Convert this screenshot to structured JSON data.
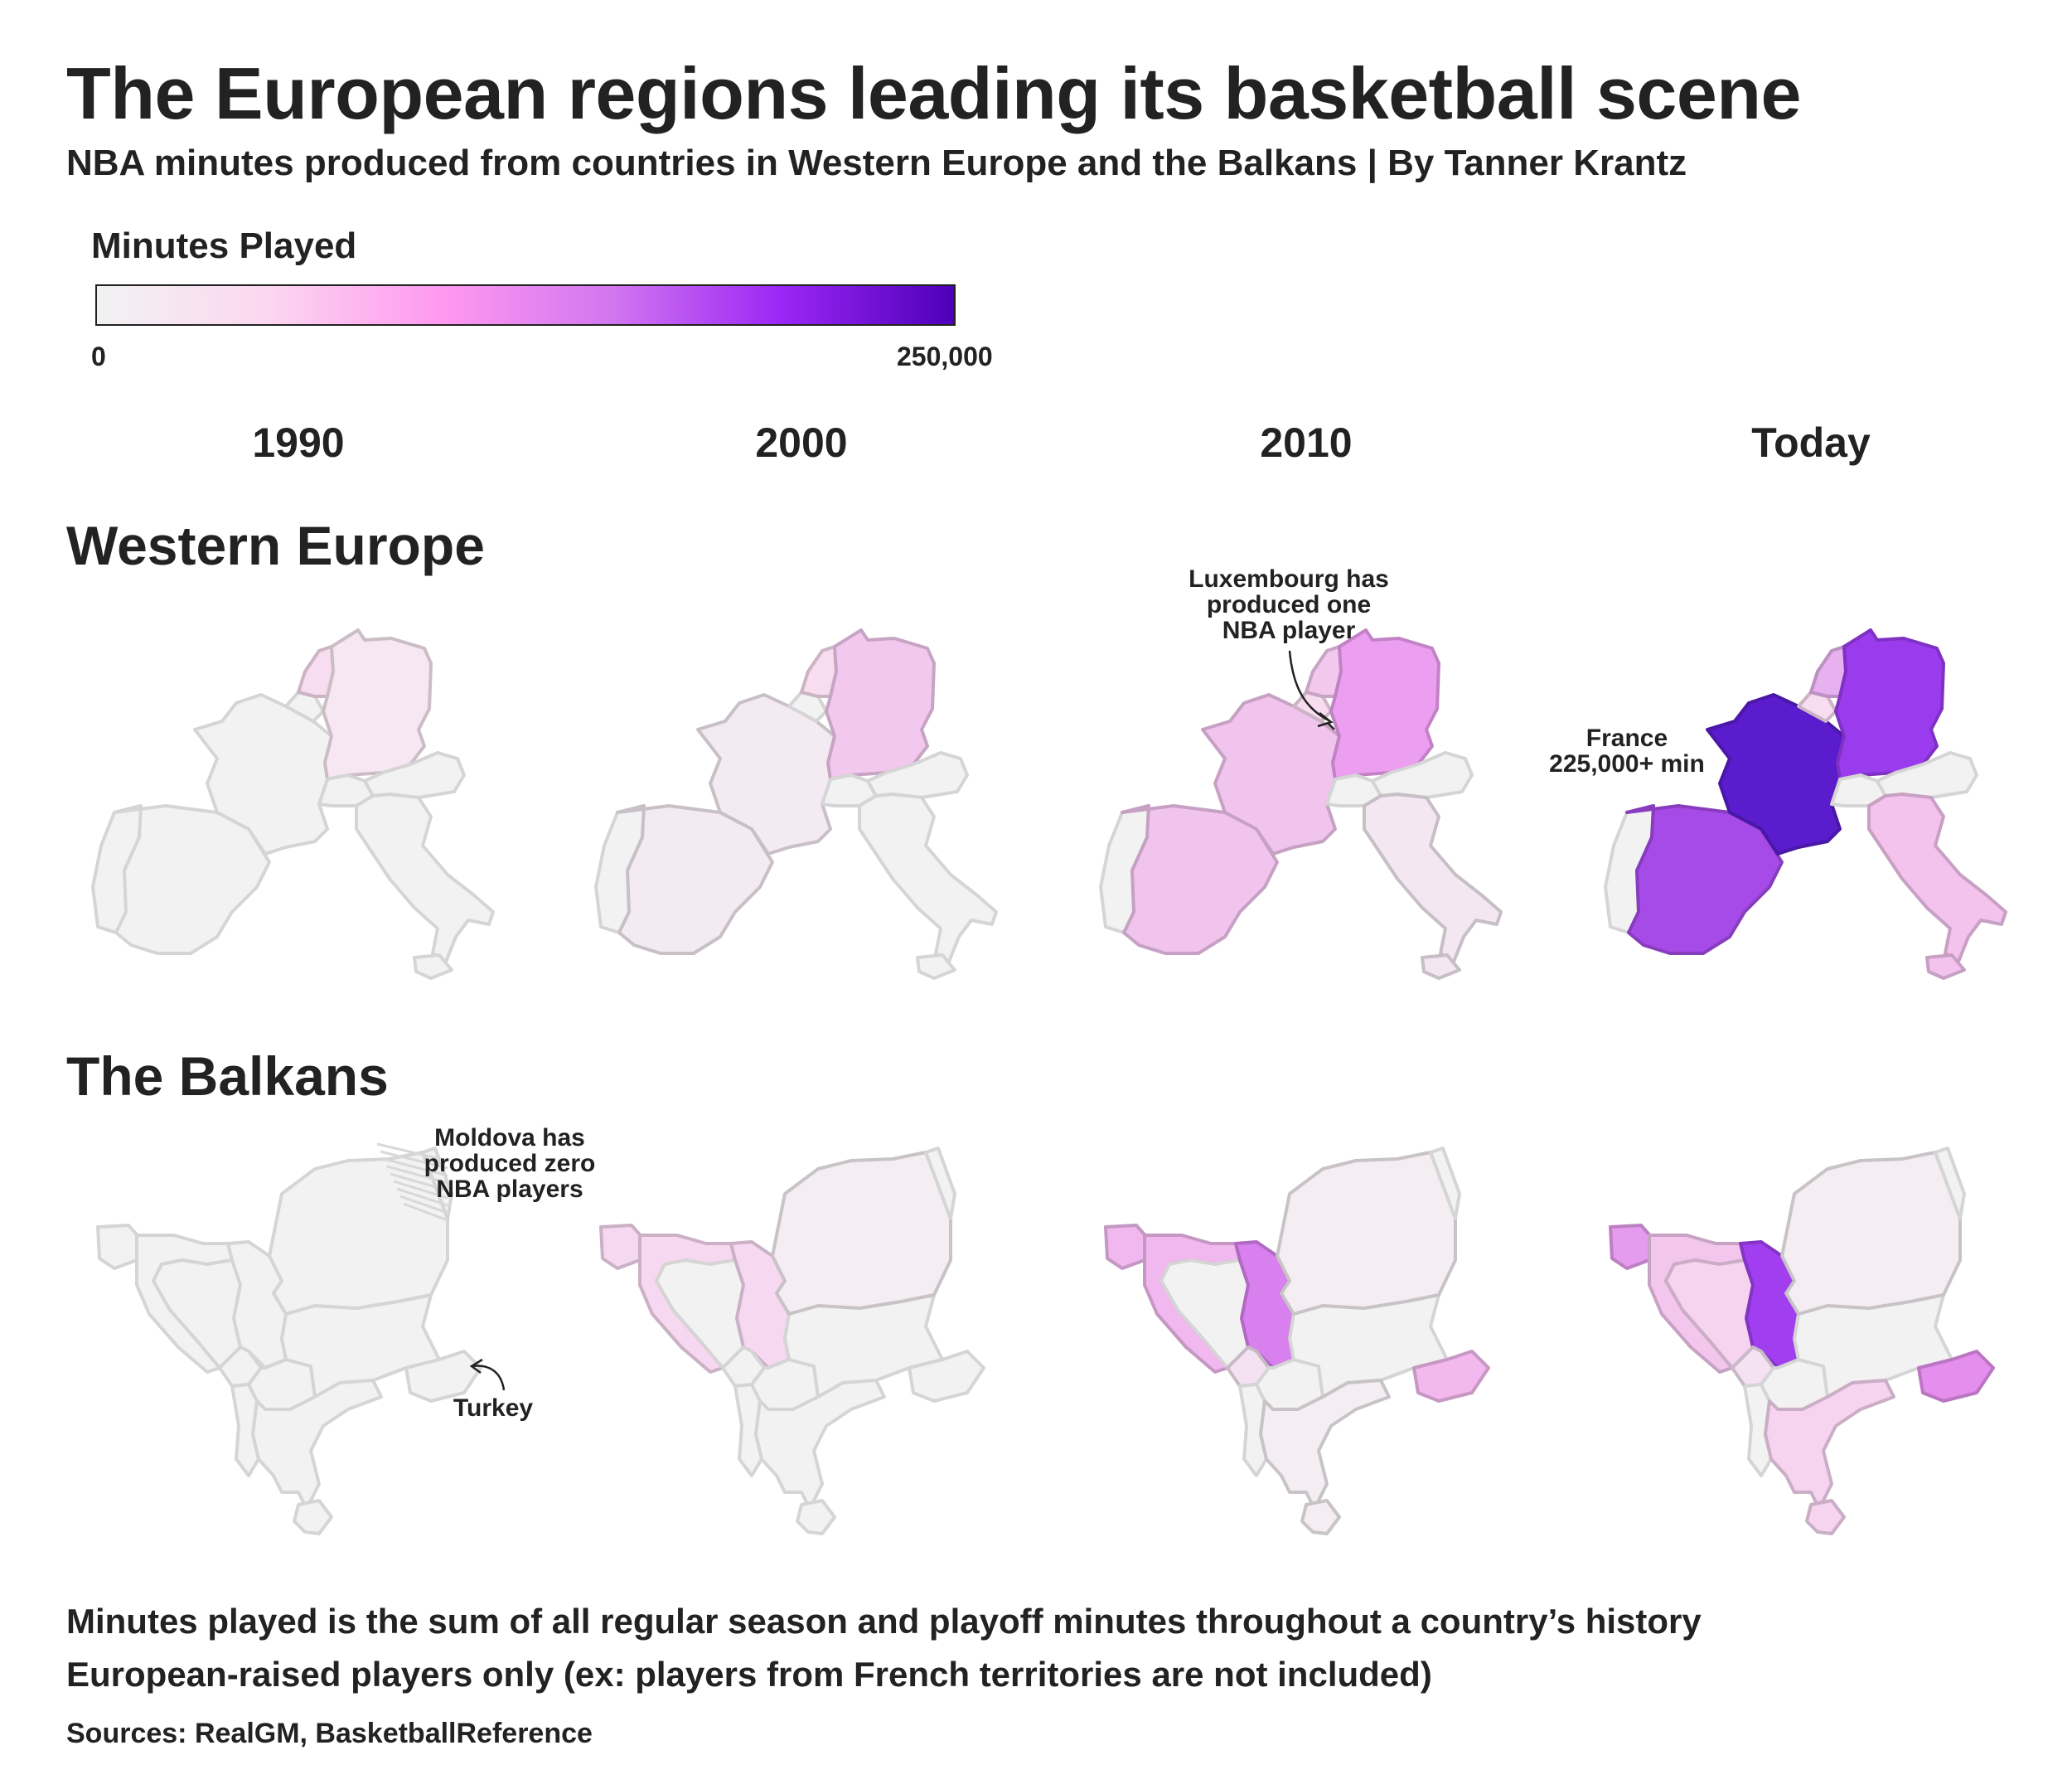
{
  "header": {
    "title": "The European regions leading its basketball scene",
    "subtitle": "NBA minutes produced from countries in Western Europe and the Balkans | By Tanner Krantz"
  },
  "legend": {
    "title": "Minutes Played",
    "min_label": "0",
    "max_label": "250,000",
    "min_value": 0,
    "max_value": 250000,
    "colors": [
      "#f2f2f2",
      "#fbd7f0",
      "#ff99f0",
      "#d276f0",
      "#9b26f5",
      "#4d00b8"
    ]
  },
  "columns": [
    "1990",
    "2000",
    "2010",
    "Today"
  ],
  "rows": {
    "western": "Western Europe",
    "balkans": "The Balkans"
  },
  "annotations": {
    "luxembourg": [
      "Luxembourg has",
      "produced one",
      "NBA player"
    ],
    "france": [
      "France",
      "225,000+ min"
    ],
    "moldova": [
      "Moldova has",
      "produced zero",
      "NBA players"
    ],
    "turkey": "Turkey"
  },
  "footnotes": {
    "line1": "Minutes played is the sum of all regular season and playoff minutes throughout a country’s history",
    "line2": "European-raised players only (ex: players from French territories are not included)",
    "sources": "Sources: RealGM, BasketballReference"
  },
  "map_data": {
    "fill_levels": {
      "western": {
        "1990": {
          "France": "#f2f2f2",
          "Spain": "#f2f2f2",
          "Portugal": "#f2f2f2",
          "Italy": "#f2f2f2",
          "Germany": "#f7e7f2",
          "Netherlands": "#f8dcef",
          "Belgium": "#f2f2f2",
          "Switzerland": "#f2f2f2",
          "Austria": "#f2f2f2"
        },
        "2000": {
          "France": "#f4eaf2",
          "Spain": "#f4eaf2",
          "Portugal": "#f2f2f2",
          "Italy": "#f2f2f2",
          "Germany": "#f3c8ee",
          "Netherlands": "#f8dcef",
          "Belgium": "#f2f2f2",
          "Switzerland": "#f2f2f2",
          "Austria": "#f2f2f2"
        },
        "2010": {
          "France": "#f1c4ee",
          "Spain": "#f1c4ee",
          "Portugal": "#f2f2f2",
          "Italy": "#f3e8f2",
          "Germany": "#ec9ef0",
          "Netherlands": "#f3c8ee",
          "Belgium": "#f8dcef",
          "Switzerland": "#f2f2f2",
          "Austria": "#f2f2f2"
        },
        "Today": {
          "France": "#5a1ccc",
          "Spain": "#a64be8",
          "Portugal": "#f2f2f2",
          "Italy": "#f3c3ee",
          "Germany": "#9a3cee",
          "Netherlands": "#e7b0ee",
          "Belgium": "#f8dcef",
          "Switzerland": "#f2f2f2",
          "Austria": "#f2f2f2"
        }
      },
      "balkans": {
        "1990": {
          "Romania": "#f2f2f2",
          "Bulgaria": "#f2f2f2",
          "Serbia": "#f2f2f2",
          "Croatia": "#f2f2f2",
          "Bosnia": "#f2f2f2",
          "Slovenia": "#f2f2f2",
          "Montenegro": "#f2f2f2",
          "Albania": "#f2f2f2",
          "North Macedonia": "#f2f2f2",
          "Greece": "#f2f2f2",
          "Turkey": "#f2f2f2",
          "Moldova": "#f2f2f2"
        },
        "2000": {
          "Romania": "#f4eef2",
          "Bulgaria": "#f2f2f2",
          "Serbia": "#f6d8f0",
          "Croatia": "#f6d8f0",
          "Bosnia": "#f2f2f2",
          "Slovenia": "#f6d8f0",
          "Montenegro": "#f2f2f2",
          "Albania": "#f2f2f2",
          "North Macedonia": "#f2f2f2",
          "Greece": "#f2f2f2",
          "Turkey": "#f2f2f2",
          "Moldova": "#f2f2f2"
        },
        "2010": {
          "Romania": "#f4eef2",
          "Bulgaria": "#f2f2f2",
          "Serbia": "#d880ee",
          "Croatia": "#f0b8ee",
          "Bosnia": "#f2f2f2",
          "Slovenia": "#f0b8ee",
          "Montenegro": "#f4e2f2",
          "Albania": "#f2f2f2",
          "North Macedonia": "#f2f2f2",
          "Greece": "#f4eef2",
          "Turkey": "#f3b9ee",
          "Moldova": "#f2f2f2"
        },
        "Today": {
          "Romania": "#f4eef2",
          "Bulgaria": "#f2f2f2",
          "Serbia": "#a13ef0",
          "Croatia": "#f3c6ee",
          "Bosnia": "#f6d4f0",
          "Slovenia": "#e59cee",
          "Montenegro": "#f4e2f2",
          "Albania": "#f2f2f2",
          "North Macedonia": "#f2f2f2",
          "Greece": "#f6d4f0",
          "Turkey": "#e48fee",
          "Moldova": "#f2f2f2"
        }
      }
    }
  }
}
